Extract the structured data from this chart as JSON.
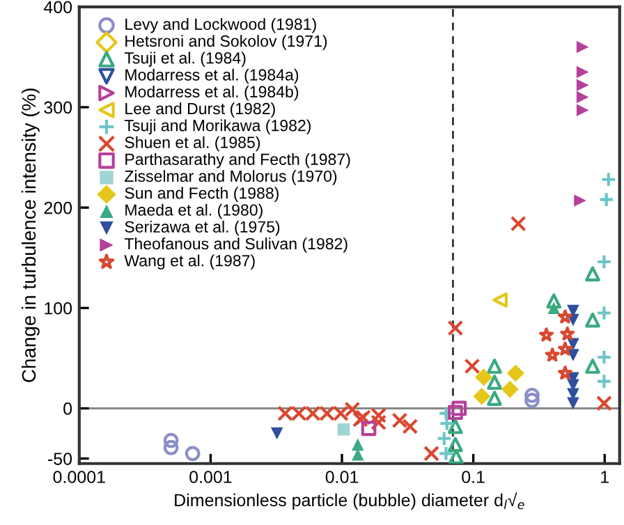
{
  "chart_data": {
    "type": "scatter",
    "xlabel": "Dimensionless particle (bubble) diameter d$_{l}$√$_{e}$",
    "ylabel": "Change in turbulence intensity (%)",
    "log": "x",
    "xlim": [
      0.0001,
      1.3
    ],
    "xticks": [
      0.0001,
      0.001,
      0.01,
      0.1,
      1
    ],
    "ylim": [
      -55,
      400
    ],
    "yticks": [
      -50,
      0,
      100,
      200,
      300,
      400
    ],
    "grid": false,
    "legend": "top left",
    "ref_lines": [
      {
        "axis": "x",
        "value": 0.07,
        "color": "#333333",
        "line_style": "dashed"
      },
      {
        "axis": "y",
        "value": 0,
        "color": "#888888",
        "line_style": "solid"
      }
    ],
    "series": [
      {
        "name": "Levy and Lockwood (1981)",
        "color": "#8a8fc8",
        "marker": "circle_open",
        "x": [
          0.0005,
          0.0005,
          0.00073,
          0.28,
          0.28
        ],
        "values": [
          -32,
          -39,
          -45,
          8,
          13
        ]
      },
      {
        "name": "Hetsroni and Sokolov (1971)",
        "color": "#e6c619",
        "marker": "diamond_open"
      },
      {
        "name": "Tsuji et al. (1984)",
        "color": "#3aaa80",
        "marker": "triangle_open",
        "x": [
          0.81,
          0.81,
          0.81,
          0.41,
          0.145,
          0.145,
          0.145,
          0.073,
          0.073,
          0.074
        ],
        "values": [
          134,
          88,
          42,
          107,
          42,
          26,
          10,
          -18,
          -36,
          -48
        ]
      },
      {
        "name": "Modarress et al. (1984a)",
        "color": "#2f4e9e",
        "marker": "triangle_down_open"
      },
      {
        "name": "Modarress et al. (1984b)",
        "color": "#b5409a",
        "marker": "triangle_right_open"
      },
      {
        "name": "Lee and Durst (1982)",
        "color": "#e6c619",
        "marker": "triangle_left_open",
        "x": [
          0.16
        ],
        "values": [
          108
        ]
      },
      {
        "name": "Tsuji and Morikawa (1982)",
        "color": "#6cc5c8",
        "marker": "plus",
        "x": [
          0.99,
          0.99,
          0.99,
          0.99,
          1.07,
          1.03,
          0.062,
          0.063,
          0.06,
          0.062
        ],
        "values": [
          146,
          95,
          51,
          27,
          228,
          208,
          -5,
          -15,
          -30,
          -45
        ]
      },
      {
        "name": "Shuen et al. (1985)",
        "color": "#d9472f",
        "marker": "cross",
        "x": [
          0.073,
          0.098,
          0.99,
          0.22,
          0.048,
          0.0037,
          0.0047,
          0.006,
          0.0077,
          0.0098,
          0.012,
          0.0138,
          0.0145,
          0.019,
          0.019,
          0.0275,
          0.033
        ],
        "values": [
          80,
          42,
          5,
          184,
          -45,
          -5,
          -5,
          -5,
          -5,
          -5,
          -1,
          -11,
          -9,
          -7,
          -14,
          -12,
          -18
        ]
      },
      {
        "name": "Parthasarathy and Fecth (1987)",
        "color": "#b5409a",
        "marker": "square_open",
        "x": [
          0.016,
          0.073,
          0.078
        ],
        "values": [
          -20,
          -4,
          0
        ]
      },
      {
        "name": "Zisselmar and Molorus (1970)",
        "color": "#9fd5d3",
        "marker": "square",
        "x": [
          0.0103
        ],
        "values": [
          -21
        ]
      },
      {
        "name": "Sun and Fecth (1988)",
        "color": "#e6c619",
        "marker": "diamond",
        "x": [
          0.12,
          0.116,
          0.21,
          0.19
        ],
        "values": [
          31,
          12,
          35,
          19
        ]
      },
      {
        "name": "Maeda et al. (1980)",
        "color": "#3aaa80",
        "marker": "triangle",
        "x": [
          0.0132,
          0.0132,
          0.41
        ],
        "values": [
          -36,
          -46,
          100
        ]
      },
      {
        "name": "Serizawa et al. (1975)",
        "color": "#2f4e9e",
        "marker": "triangle_down",
        "x": [
          0.575,
          0.575,
          0.575,
          0.575,
          0.575,
          0.575,
          0.575,
          0.575,
          0.0032
        ],
        "values": [
          97,
          88,
          64,
          53,
          30,
          23,
          14,
          5,
          -25
        ]
      },
      {
        "name": "Theofanous and Sulivan (1982)",
        "color": "#b5409a",
        "marker": "triangle_right",
        "x": [
          0.68,
          0.68,
          0.68,
          0.68,
          0.68,
          0.65
        ],
        "values": [
          360,
          335,
          322,
          310,
          297,
          207
        ]
      },
      {
        "name": "Wang et al. (1987)",
        "color": "#d9472f",
        "marker": "star_open",
        "x": [
          0.5,
          0.52,
          0.36,
          0.5,
          0.4,
          0.5
        ],
        "values": [
          91,
          74,
          73,
          59,
          53,
          35
        ]
      }
    ]
  }
}
